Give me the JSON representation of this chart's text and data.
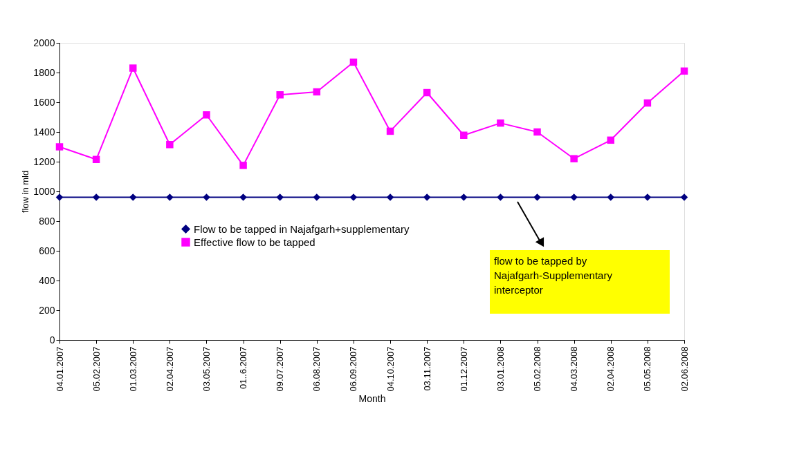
{
  "chart_data": {
    "type": "line",
    "xlabel": "Month",
    "ylabel": "flow in mld",
    "categories": [
      "04.01.2007",
      "05.02.2007",
      "01.03.2007",
      "02.04.2007",
      "03.05.2007",
      "01..6.2007",
      "09.07.2007",
      "06.08.2007",
      "06.09.2007",
      "04.10.2007",
      "03.11.2007",
      "01.12.2007",
      "03.01.2008",
      "05.02.2008",
      "04.03.2008",
      "02.04.2008",
      "05.05.2008",
      "02.06.2008"
    ],
    "series": [
      {
        "name": "Flow to be tapped in Najafgarh+supplementary",
        "color": "#000080",
        "marker": "diamond",
        "values": [
          960,
          960,
          960,
          960,
          960,
          960,
          960,
          960,
          960,
          960,
          960,
          960,
          960,
          960,
          960,
          960,
          960,
          960
        ]
      },
      {
        "name": "Effective flow to be tapped",
        "color": "#ff00ff",
        "marker": "square",
        "values": [
          1300,
          1215,
          1830,
          1315,
          1515,
          1175,
          1650,
          1670,
          1870,
          1405,
          1665,
          1378,
          1460,
          1400,
          1220,
          1345,
          1595,
          1810
        ]
      }
    ],
    "ylim": [
      0,
      2000
    ],
    "yticks": [
      0,
      200,
      400,
      600,
      800,
      1000,
      1200,
      1400,
      1600,
      1800,
      2000
    ],
    "grid": false,
    "legend": "left",
    "line_style": "solid",
    "annotations": [
      "flow to be tapped by Najafgarh-Supplementary interceptor"
    ]
  }
}
